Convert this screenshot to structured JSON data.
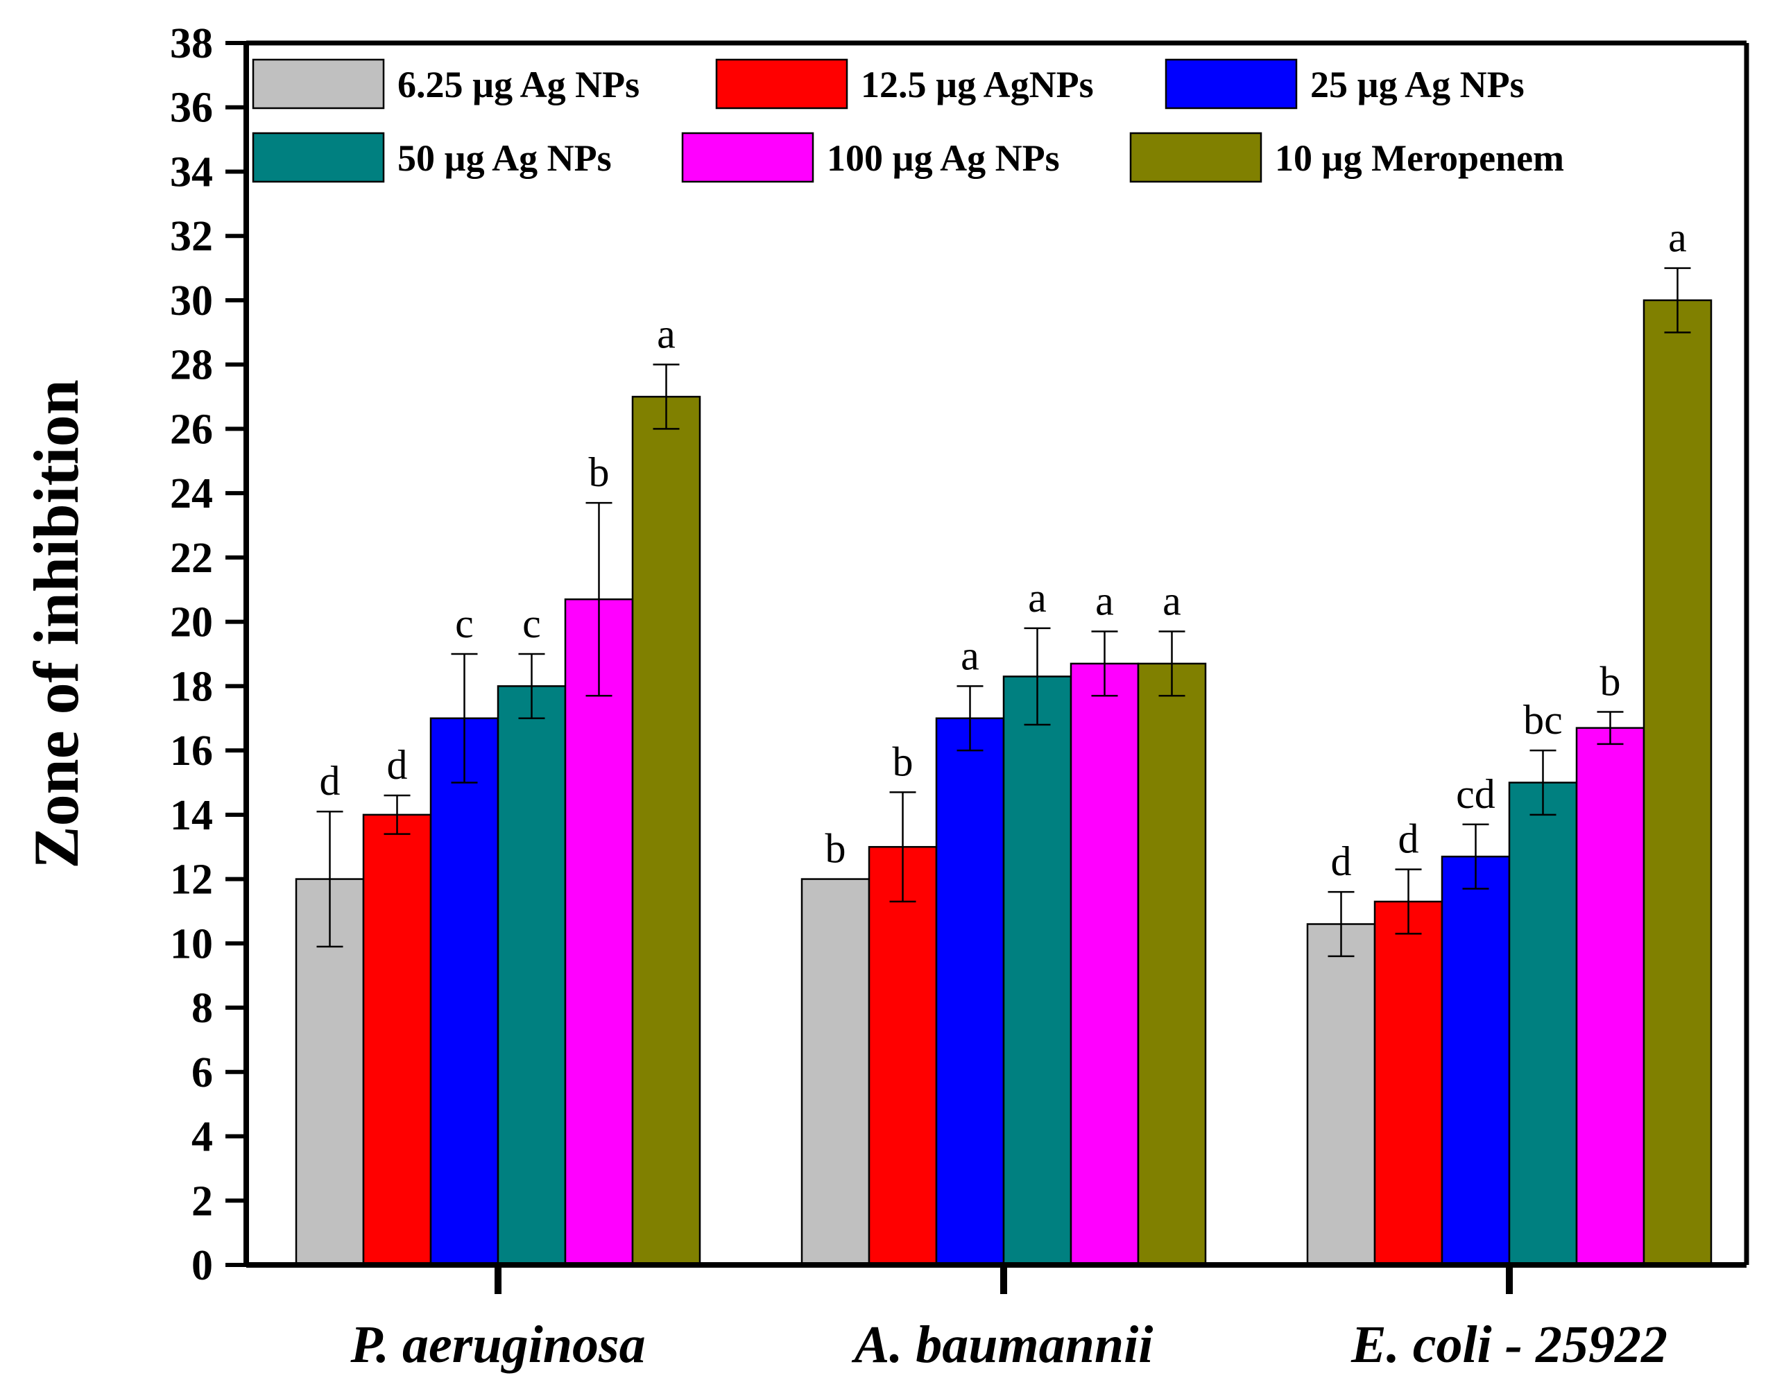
{
  "chart_data": {
    "type": "bar",
    "title": "",
    "xlabel": "",
    "ylabel": "Zone of inhibition",
    "ylim": [
      0,
      38
    ],
    "ytick_step": 2,
    "grid": false,
    "legend_position": "top",
    "categories": [
      "P. aeruginosa",
      "A. baumannii",
      "E. coli - 25922"
    ],
    "series": [
      {
        "name": "6.25 µg Ag NPs",
        "color": "#c0c0c0",
        "values": [
          12.0,
          12.0,
          10.6
        ],
        "errors": [
          2.1,
          0.0,
          1.0
        ],
        "sig": [
          "d",
          "b",
          "d"
        ]
      },
      {
        "name": "12.5 µg AgNPs",
        "color": "#ff0000",
        "values": [
          14.0,
          13.0,
          11.3
        ],
        "errors": [
          0.6,
          1.7,
          1.0
        ],
        "sig": [
          "d",
          "b",
          "d"
        ]
      },
      {
        "name": "25 µg Ag NPs",
        "color": "#0000ff",
        "values": [
          17.0,
          17.0,
          12.7
        ],
        "errors": [
          2.0,
          1.0,
          1.0
        ],
        "sig": [
          "c",
          "a",
          "cd"
        ]
      },
      {
        "name": "50 µg Ag NPs",
        "color": "#008080",
        "values": [
          18.0,
          18.3,
          15.0
        ],
        "errors": [
          1.0,
          1.5,
          1.0
        ],
        "sig": [
          "c",
          "a",
          "bc"
        ]
      },
      {
        "name": "100 µg Ag NPs",
        "color": "#ff00ff",
        "values": [
          20.7,
          18.7,
          16.7
        ],
        "errors": [
          3.0,
          1.0,
          0.5
        ],
        "sig": [
          "b",
          "a",
          "b"
        ]
      },
      {
        "name": "10 µg Meropenem",
        "color": "#808000",
        "values": [
          27.0,
          18.7,
          30.0
        ],
        "errors": [
          1.0,
          1.0,
          1.0
        ],
        "sig": [
          "a",
          "a",
          "a"
        ]
      }
    ]
  }
}
